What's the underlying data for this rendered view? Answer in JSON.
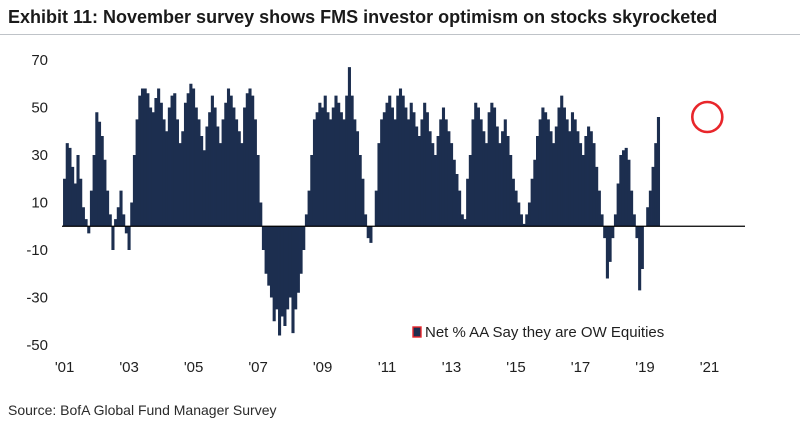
{
  "header": {
    "title": "Exhibit 11: November survey shows FMS investor optimism on stocks skyrocketed"
  },
  "footer": {
    "source": "Source: BofA Global Fund Manager Survey"
  },
  "colors": {
    "bar": "#1c2e4f",
    "highlight_circle": "#e8262b",
    "axis": "#000000",
    "legend_marker": "#1c2e4f",
    "legend_marker_border": "#e8262b"
  },
  "chart_data": {
    "type": "bar",
    "title": "",
    "xlabel": "",
    "ylabel": "",
    "ylim": [
      -50,
      70
    ],
    "yticks": [
      70,
      50,
      30,
      10,
      -10,
      -30,
      -50
    ],
    "x_tick_labels": [
      "'01",
      "'03",
      "'05",
      "'07",
      "'09",
      "'11",
      "'13",
      "'15",
      "'17",
      "'19",
      "'21"
    ],
    "x_tick_years": [
      2001,
      2003,
      2005,
      2007,
      2009,
      2011,
      2013,
      2015,
      2017,
      2019,
      2021
    ],
    "grid": false,
    "legend_position": "bottom-right",
    "highlight": {
      "year": 2020.87,
      "value": 46,
      "shape": "circle"
    },
    "series": [
      {
        "name": "Net % AA Say they are OW Equities",
        "start": 2001.0,
        "step_months": 1,
        "values": [
          20,
          35,
          33,
          25,
          18,
          30,
          20,
          8,
          3,
          -3,
          15,
          30,
          48,
          44,
          38,
          28,
          15,
          5,
          -10,
          3,
          8,
          15,
          5,
          -3,
          -10,
          10,
          30,
          45,
          55,
          58,
          58,
          56,
          50,
          48,
          54,
          58,
          52,
          45,
          40,
          50,
          55,
          56,
          45,
          35,
          40,
          52,
          56,
          60,
          58,
          50,
          45,
          38,
          32,
          42,
          48,
          55,
          50,
          42,
          35,
          45,
          52,
          58,
          55,
          50,
          45,
          40,
          35,
          50,
          56,
          58,
          55,
          45,
          30,
          10,
          -10,
          -20,
          -25,
          -30,
          -40,
          -35,
          -46,
          -38,
          -42,
          -35,
          -30,
          -45,
          -35,
          -28,
          -20,
          -10,
          5,
          15,
          30,
          45,
          48,
          52,
          50,
          55,
          48,
          45,
          50,
          55,
          52,
          48,
          45,
          55,
          67,
          55,
          45,
          40,
          30,
          20,
          5,
          -5,
          -7,
          0,
          15,
          35,
          45,
          48,
          52,
          55,
          50,
          45,
          55,
          58,
          55,
          50,
          45,
          52,
          48,
          42,
          38,
          45,
          52,
          48,
          40,
          35,
          30,
          38,
          45,
          50,
          45,
          40,
          35,
          28,
          22,
          15,
          5,
          3,
          20,
          30,
          45,
          52,
          50,
          45,
          40,
          35,
          48,
          52,
          50,
          42,
          35,
          40,
          45,
          38,
          30,
          20,
          15,
          10,
          5,
          1,
          5,
          10,
          20,
          28,
          38,
          45,
          50,
          48,
          45,
          40,
          35,
          42,
          50,
          55,
          50,
          45,
          40,
          48,
          45,
          40,
          35,
          30,
          38,
          42,
          40,
          35,
          25,
          15,
          5,
          -5,
          -22,
          -15,
          -5,
          5,
          18,
          30,
          32,
          33,
          28,
          15,
          5,
          -5,
          -27,
          -18,
          0,
          8,
          15,
          25,
          35,
          46
        ]
      }
    ]
  }
}
